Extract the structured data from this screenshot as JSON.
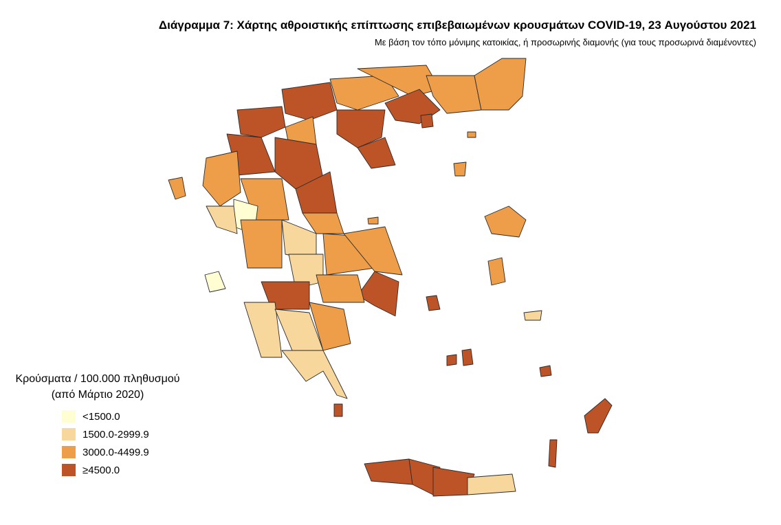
{
  "title": "Διάγραμμα 7: Χάρτης αθροιστικής επίπτωσης επιβεβαιωμένων κρουσμάτων COVID-19, 23 Αυγούστου 2021",
  "subtitle": "Με βάση τον τόπο μόνιμης κατοικίας, ή προσωρινής διαμονής (για τους προσωρινά διαμένοντες)",
  "legend": {
    "title_lines": [
      "Κρούσματα / 100.000 πληθυσμού",
      "(από Μάρτιο 2020)"
    ],
    "items": [
      {
        "label": "<1500.0",
        "color": "#fefed2"
      },
      {
        "label": "1500.0-2999.9",
        "color": "#f8d79c"
      },
      {
        "label": "3000.0-4499.9",
        "color": "#ee9e48"
      },
      {
        "label": "≥4500.0",
        "color": "#bd5427"
      }
    ]
  }
}
